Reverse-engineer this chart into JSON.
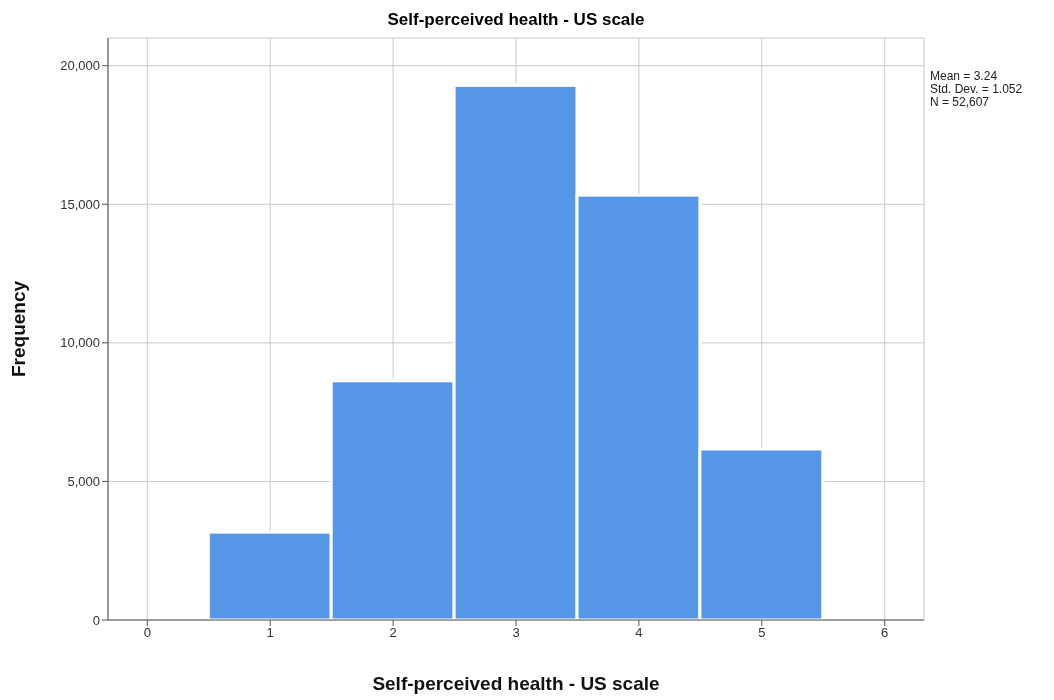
{
  "chart_data": {
    "type": "histogram",
    "title": "Self-perceived health - US scale",
    "xlabel": "Self-perceived health - US scale",
    "ylabel": "Frequency",
    "bins": [
      0.5,
      1.5,
      2.5,
      3.5,
      4.5,
      5.5
    ],
    "values": [
      3170,
      8630,
      19290,
      15330,
      6170
    ],
    "color": "#5596e6",
    "xlim": [
      -0.32,
      6.32
    ],
    "xticks": [
      0,
      1,
      2,
      3,
      4,
      5,
      6
    ],
    "ylim": [
      0,
      21000
    ],
    "yticks": [
      0,
      {
        "value": 5000,
        "label": "5,000"
      },
      {
        "value": 10000,
        "label": "10,000"
      },
      {
        "value": 15000,
        "label": "15,000"
      },
      {
        "value": 20000,
        "label": "20,000"
      }
    ],
    "grid": true,
    "annotations": [
      "Mean = 3.24",
      "Std. Dev. = 1.052",
      "N = 52,607"
    ]
  }
}
